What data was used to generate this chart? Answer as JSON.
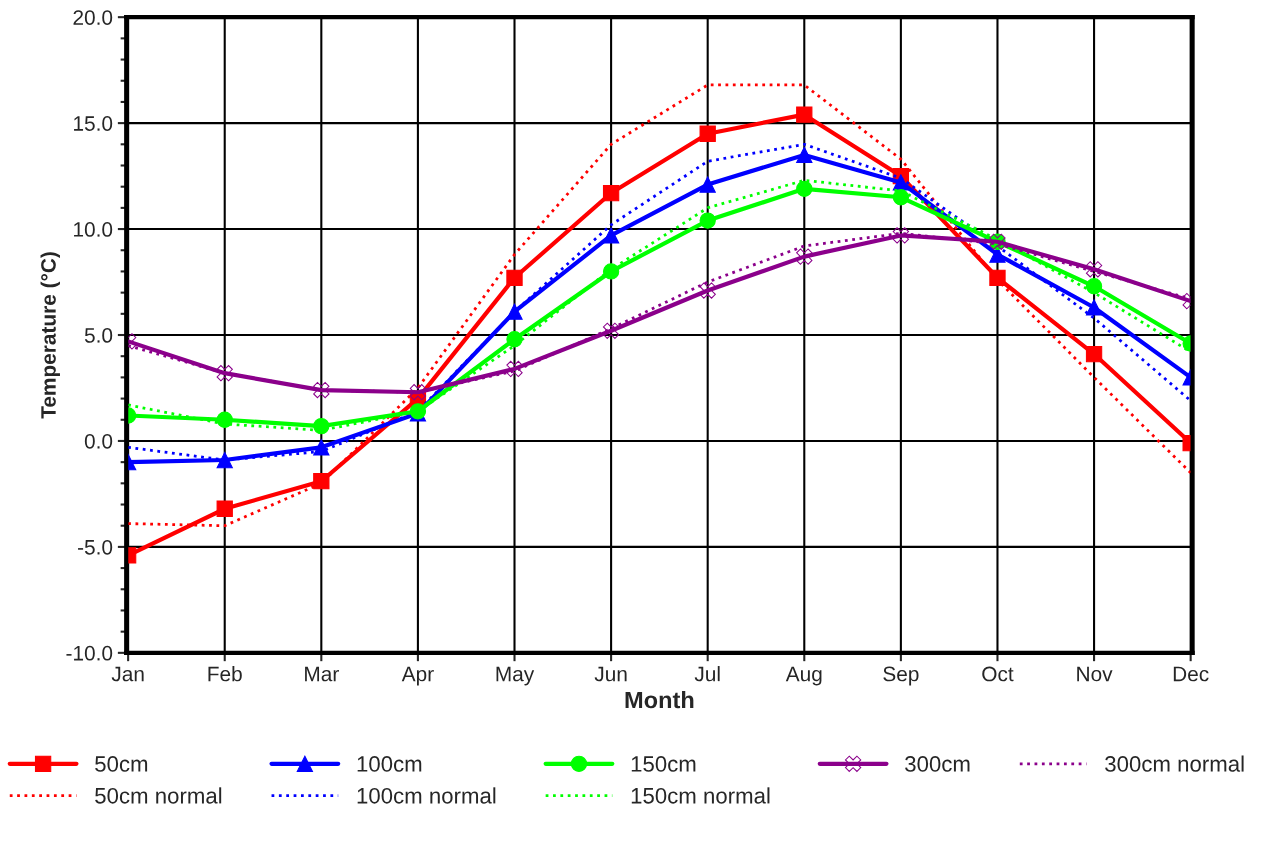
{
  "chart_data": {
    "type": "line",
    "xlabel": "Month",
    "ylabel": "Temperature (°C)",
    "categories": [
      "Jan",
      "Feb",
      "Mar",
      "Apr",
      "May",
      "Jun",
      "Jul",
      "Aug",
      "Sep",
      "Oct",
      "Nov",
      "Dec"
    ],
    "ylim": [
      -10,
      20
    ],
    "yticks": [
      {
        "value": -10,
        "label": "-10.0"
      },
      {
        "value": -5,
        "label": "-5.0"
      },
      {
        "value": 0,
        "label": "0.0"
      },
      {
        "value": 5,
        "label": "5.0"
      },
      {
        "value": 10,
        "label": "10.0"
      },
      {
        "value": 15,
        "label": "15.0"
      },
      {
        "value": 20,
        "label": "20.0"
      }
    ],
    "grid": true,
    "legend": "bottom",
    "series": [
      {
        "name": "50cm",
        "color": "#ff0000",
        "marker": "square",
        "line_style": "solid",
        "values": [
          -5.4,
          -3.2,
          -1.9,
          2.0,
          7.7,
          11.7,
          14.5,
          15.4,
          12.5,
          7.7,
          4.1,
          -0.1
        ]
      },
      {
        "name": "50cm normal",
        "color": "#ff0000",
        "marker": "none",
        "line_style": "dotted",
        "values": [
          -3.9,
          -4.0,
          -2.0,
          2.5,
          8.8,
          14.0,
          16.8,
          16.8,
          13.3,
          7.6,
          3.0,
          -1.5
        ]
      },
      {
        "name": "100cm",
        "color": "#0000ff",
        "marker": "triangle",
        "line_style": "solid",
        "values": [
          -1.0,
          -0.9,
          -0.3,
          1.3,
          6.1,
          9.7,
          12.1,
          13.5,
          12.2,
          8.8,
          6.3,
          3.0
        ]
      },
      {
        "name": "100cm normal",
        "color": "#0000ff",
        "marker": "none",
        "line_style": "dotted",
        "values": [
          -0.3,
          -0.9,
          -0.5,
          1.4,
          6.1,
          10.2,
          13.2,
          14.0,
          12.4,
          9.2,
          5.8,
          1.9
        ]
      },
      {
        "name": "150cm",
        "color": "#00ff00",
        "marker": "circle",
        "line_style": "solid",
        "values": [
          1.2,
          1.0,
          0.7,
          1.4,
          4.8,
          8.0,
          10.4,
          11.9,
          11.5,
          9.4,
          7.3,
          4.6
        ]
      },
      {
        "name": "150cm normal",
        "color": "#00ff00",
        "marker": "none",
        "line_style": "dotted",
        "values": [
          1.7,
          0.8,
          0.5,
          1.4,
          4.5,
          8.1,
          11.0,
          12.3,
          11.8,
          9.5,
          7.0,
          4.2
        ]
      },
      {
        "name": "300cm",
        "color": "#8b008b",
        "marker": "cross",
        "line_style": "solid",
        "values": [
          4.7,
          3.2,
          2.4,
          2.3,
          3.4,
          5.2,
          7.1,
          8.7,
          9.7,
          9.4,
          8.1,
          6.6
        ]
      },
      {
        "name": "300cm normal",
        "color": "#8b008b",
        "marker": "none",
        "line_style": "dotted",
        "values": [
          4.5,
          3.2,
          2.4,
          2.3,
          3.3,
          5.3,
          7.5,
          9.2,
          9.8,
          9.3,
          8.0,
          6.7
        ]
      }
    ]
  }
}
